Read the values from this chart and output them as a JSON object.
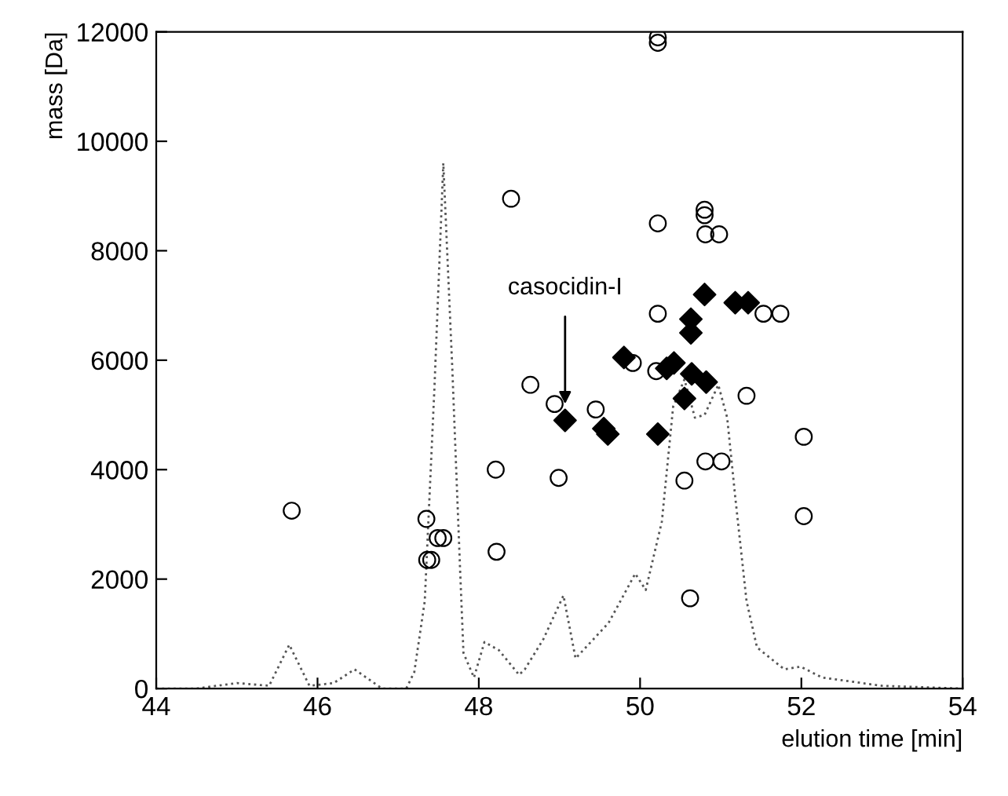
{
  "chart_data": {
    "type": "scatter",
    "xlabel": "elution time [min]",
    "ylabel": "mass [Da]",
    "xlim": [
      44,
      54
    ],
    "xticks": [
      44,
      46,
      48,
      50,
      52,
      54
    ],
    "ylim": [
      0,
      12000
    ],
    "yticks": [
      0,
      2000,
      4000,
      6000,
      8000,
      10000,
      12000
    ],
    "grid": false,
    "legend": false,
    "series": [
      {
        "type": "line",
        "color": "#555555",
        "line_style": "dotted",
        "marker": "none",
        "x": [
          44,
          44.5,
          45.0,
          45.4,
          45.65,
          45.9,
          46.2,
          46.46,
          46.8,
          47.1,
          47.2,
          47.33,
          47.45,
          47.56,
          47.67,
          47.77,
          47.81,
          47.94,
          48.07,
          48.25,
          48.5,
          48.57,
          48.8,
          49.05,
          49.2,
          49.61,
          49.94,
          50.07,
          50.27,
          50.41,
          50.55,
          50.68,
          50.8,
          50.97,
          51.08,
          51.18,
          51.32,
          51.45,
          51.79,
          51.99,
          52.26,
          53,
          54
        ],
        "values": [
          0,
          0,
          100,
          50,
          800,
          50,
          100,
          350,
          0,
          0,
          300,
          1600,
          5500,
          9600,
          5900,
          2100,
          650,
          200,
          850,
          700,
          250,
          350,
          900,
          1700,
          550,
          1200,
          2100,
          1800,
          3050,
          5150,
          5650,
          4950,
          5000,
          5550,
          4950,
          3500,
          1600,
          750,
          350,
          400,
          200,
          50,
          0
        ]
      },
      {
        "color": "#000000",
        "marker": "circle",
        "x": [
          45.68,
          47.35,
          47.36,
          47.41,
          47.49,
          47.56,
          48.21,
          48.22,
          48.4,
          48.64,
          50.22,
          50.22,
          50.22,
          50.8,
          50.8,
          50.81,
          50.98,
          50.22,
          51.53,
          51.74,
          49.91,
          50.2,
          51.32,
          48.94,
          49.45,
          52.03,
          48.99,
          50.81,
          51.01,
          50.55,
          52.03,
          50.62
        ],
        "values": [
          3250,
          3100,
          2350,
          2350,
          2750,
          2750,
          4000,
          2500,
          8950,
          5550,
          11900,
          11800,
          8500,
          8750,
          8650,
          8300,
          8300,
          6850,
          6850,
          6850,
          5950,
          5800,
          5350,
          5200,
          5100,
          4600,
          3850,
          4150,
          4150,
          3800,
          3150,
          1650
        ]
      },
      {
        "color": "#000000",
        "marker": "diamond",
        "x": [
          50.8,
          51.18,
          51.34,
          50.63,
          50.63,
          49.8,
          50.33,
          50.42,
          50.64,
          50.82,
          50.55,
          49.07,
          49.55,
          49.6,
          50.22
        ],
        "values": [
          7200,
          7050,
          7050,
          6750,
          6500,
          6050,
          5850,
          5950,
          5750,
          5600,
          5300,
          4900,
          4750,
          4650,
          4650
        ]
      }
    ],
    "annotations": [
      {
        "text": "casocidin-I",
        "x": 49.07,
        "y": 5200
      }
    ]
  }
}
